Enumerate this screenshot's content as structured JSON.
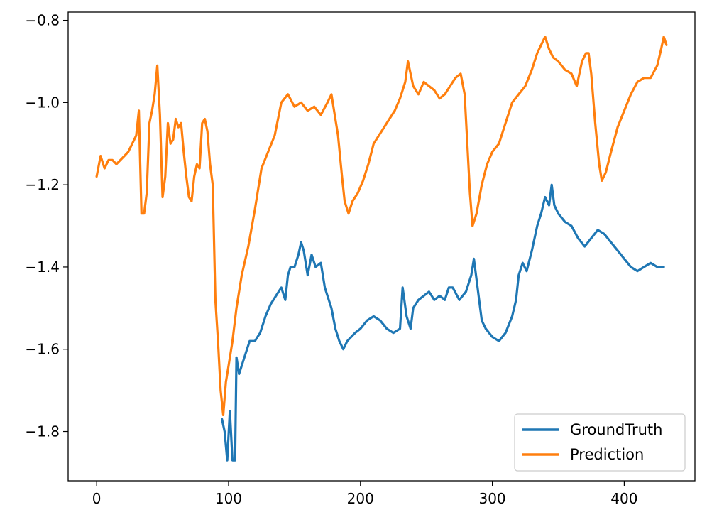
{
  "chart_data": {
    "type": "line",
    "title": "",
    "xlabel": "",
    "ylabel": "",
    "xlim": [
      -21.6,
      453.6
    ],
    "ylim": [
      -1.92,
      -0.78
    ],
    "grid": false,
    "legend_position": "lower-right",
    "xticks": [
      0,
      100,
      200,
      300,
      400
    ],
    "yticks": [
      -1.8,
      -1.6,
      -1.4,
      -1.2,
      -1.0,
      -0.8
    ],
    "xtick_labels": [
      "0",
      "100",
      "200",
      "300",
      "400"
    ],
    "ytick_labels": [
      "−1.8",
      "−1.6",
      "−1.4",
      "−1.2",
      "−1.0",
      "−0.8"
    ],
    "series": [
      {
        "name": "GroundTruth",
        "color": "#1f77b4",
        "x": [
          95,
          97,
          99,
          101,
          103,
          105,
          106,
          108,
          110,
          113,
          116,
          120,
          124,
          128,
          132,
          136,
          140,
          143,
          145,
          147,
          150,
          153,
          155,
          157,
          160,
          163,
          166,
          170,
          173,
          175,
          178,
          181,
          184,
          187,
          190,
          193,
          196,
          200,
          205,
          210,
          215,
          220,
          225,
          230,
          232,
          235,
          238,
          240,
          244,
          248,
          252,
          256,
          260,
          264,
          267,
          270,
          275,
          280,
          284,
          286,
          288,
          290,
          292,
          295,
          300,
          305,
          310,
          315,
          318,
          320,
          323,
          326,
          330,
          334,
          337,
          340,
          343,
          345,
          347,
          350,
          355,
          360,
          365,
          370,
          375,
          380,
          385,
          390,
          395,
          400,
          405,
          410,
          415,
          420,
          425,
          430
        ],
        "y": [
          -1.77,
          -1.8,
          -1.87,
          -1.75,
          -1.87,
          -1.87,
          -1.62,
          -1.66,
          -1.64,
          -1.61,
          -1.58,
          -1.58,
          -1.56,
          -1.52,
          -1.49,
          -1.47,
          -1.45,
          -1.48,
          -1.42,
          -1.4,
          -1.4,
          -1.37,
          -1.34,
          -1.36,
          -1.42,
          -1.37,
          -1.4,
          -1.39,
          -1.45,
          -1.47,
          -1.5,
          -1.55,
          -1.58,
          -1.6,
          -1.58,
          -1.57,
          -1.56,
          -1.55,
          -1.53,
          -1.52,
          -1.53,
          -1.55,
          -1.56,
          -1.55,
          -1.45,
          -1.52,
          -1.55,
          -1.5,
          -1.48,
          -1.47,
          -1.46,
          -1.48,
          -1.47,
          -1.48,
          -1.45,
          -1.45,
          -1.48,
          -1.46,
          -1.42,
          -1.38,
          -1.43,
          -1.48,
          -1.53,
          -1.55,
          -1.57,
          -1.58,
          -1.56,
          -1.52,
          -1.48,
          -1.42,
          -1.39,
          -1.41,
          -1.36,
          -1.3,
          -1.27,
          -1.23,
          -1.25,
          -1.2,
          -1.25,
          -1.27,
          -1.29,
          -1.3,
          -1.33,
          -1.35,
          -1.33,
          -1.31,
          -1.32,
          -1.34,
          -1.36,
          -1.38,
          -1.4,
          -1.41,
          -1.4,
          -1.39,
          -1.4,
          -1.4
        ]
      },
      {
        "name": "Prediction",
        "color": "#ff7f0e",
        "x": [
          0,
          3,
          6,
          9,
          12,
          15,
          18,
          21,
          24,
          27,
          30,
          32,
          34,
          36,
          38,
          40,
          42,
          44,
          46,
          48,
          50,
          52,
          54,
          56,
          58,
          60,
          62,
          64,
          66,
          68,
          70,
          72,
          74,
          76,
          78,
          80,
          82,
          84,
          86,
          88,
          90,
          92,
          94,
          96,
          98,
          100,
          103,
          106,
          110,
          115,
          120,
          125,
          130,
          135,
          140,
          145,
          150,
          155,
          160,
          165,
          170,
          175,
          178,
          180,
          183,
          186,
          188,
          191,
          194,
          198,
          202,
          206,
          210,
          214,
          218,
          222,
          226,
          230,
          234,
          236,
          238,
          240,
          244,
          248,
          252,
          256,
          260,
          264,
          268,
          272,
          276,
          279,
          281,
          283,
          285,
          288,
          292,
          296,
          300,
          305,
          310,
          315,
          320,
          325,
          330,
          334,
          337,
          340,
          343,
          346,
          350,
          355,
          360,
          364,
          368,
          371,
          373,
          375,
          378,
          381,
          383,
          386,
          390,
          395,
          400,
          405,
          410,
          415,
          420,
          425,
          428,
          430,
          432
        ],
        "y": [
          -1.18,
          -1.13,
          -1.16,
          -1.14,
          -1.14,
          -1.15,
          -1.14,
          -1.13,
          -1.12,
          -1.1,
          -1.08,
          -1.02,
          -1.27,
          -1.27,
          -1.22,
          -1.05,
          -1.02,
          -0.98,
          -0.91,
          -1.03,
          -1.23,
          -1.18,
          -1.05,
          -1.1,
          -1.09,
          -1.04,
          -1.06,
          -1.05,
          -1.12,
          -1.18,
          -1.23,
          -1.24,
          -1.18,
          -1.15,
          -1.16,
          -1.05,
          -1.04,
          -1.07,
          -1.15,
          -1.2,
          -1.48,
          -1.58,
          -1.7,
          -1.76,
          -1.68,
          -1.64,
          -1.58,
          -1.5,
          -1.42,
          -1.35,
          -1.26,
          -1.16,
          -1.12,
          -1.08,
          -1.0,
          -0.98,
          -1.01,
          -1.0,
          -1.02,
          -1.01,
          -1.03,
          -1.0,
          -0.98,
          -1.02,
          -1.08,
          -1.18,
          -1.24,
          -1.27,
          -1.24,
          -1.22,
          -1.19,
          -1.15,
          -1.1,
          -1.08,
          -1.06,
          -1.04,
          -1.02,
          -0.99,
          -0.95,
          -0.9,
          -0.93,
          -0.96,
          -0.98,
          -0.95,
          -0.96,
          -0.97,
          -0.99,
          -0.98,
          -0.96,
          -0.94,
          -0.93,
          -0.98,
          -1.1,
          -1.22,
          -1.3,
          -1.27,
          -1.2,
          -1.15,
          -1.12,
          -1.1,
          -1.05,
          -1.0,
          -0.98,
          -0.96,
          -0.92,
          -0.88,
          -0.86,
          -0.84,
          -0.87,
          -0.89,
          -0.9,
          -0.92,
          -0.93,
          -0.96,
          -0.9,
          -0.88,
          -0.88,
          -0.93,
          -1.05,
          -1.15,
          -1.19,
          -1.17,
          -1.12,
          -1.06,
          -1.02,
          -0.98,
          -0.95,
          -0.94,
          -0.94,
          -0.91,
          -0.87,
          -0.84,
          -0.86
        ]
      }
    ]
  }
}
